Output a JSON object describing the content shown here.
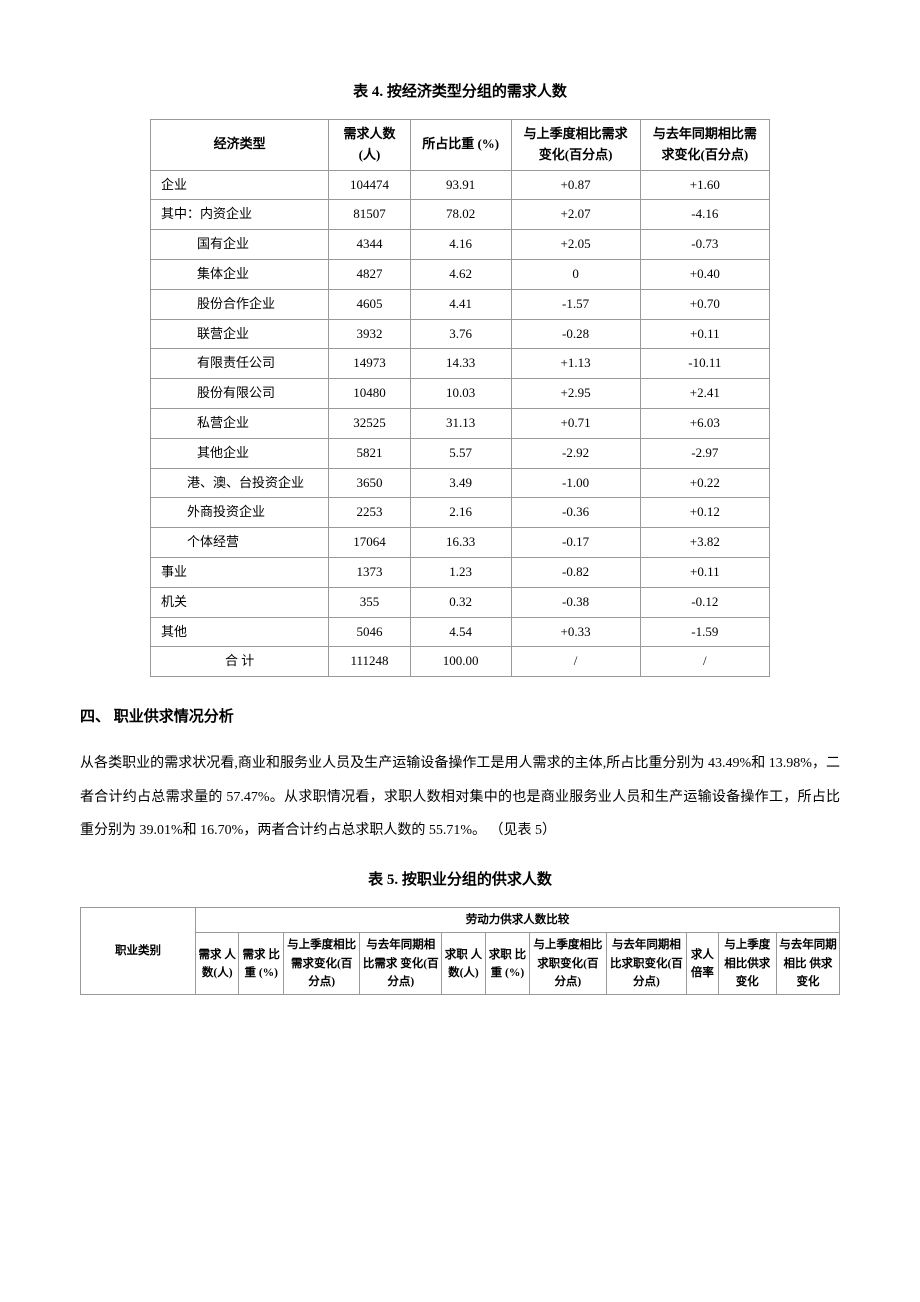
{
  "table4": {
    "title": "表 4. 按经济类型分组的需求人数",
    "headers": [
      "经济类型",
      "需求人数(人)",
      "所占比重 (%)",
      "与上季度相比需求变化(百分点)",
      "与去年同期相比需求变化(百分点)"
    ],
    "rows": [
      {
        "label": "企业",
        "indent": 0,
        "v": [
          "104474",
          "93.91",
          "+0.87",
          "+1.60"
        ]
      },
      {
        "label": "其中：内资企业",
        "indent": 0,
        "v": [
          "81507",
          "78.02",
          "+2.07",
          "-4.16"
        ]
      },
      {
        "label": "国有企业",
        "indent": 2,
        "v": [
          "4344",
          "4.16",
          "+2.05",
          "-0.73"
        ]
      },
      {
        "label": "集体企业",
        "indent": 2,
        "v": [
          "4827",
          "4.62",
          "0",
          "+0.40"
        ]
      },
      {
        "label": "股份合作企业",
        "indent": 2,
        "v": [
          "4605",
          "4.41",
          "-1.57",
          "+0.70"
        ]
      },
      {
        "label": "联营企业",
        "indent": 2,
        "v": [
          "3932",
          "3.76",
          "-0.28",
          "+0.11"
        ]
      },
      {
        "label": "有限责任公司",
        "indent": 2,
        "v": [
          "14973",
          "14.33",
          "+1.13",
          "-10.11"
        ]
      },
      {
        "label": "股份有限公司",
        "indent": 2,
        "v": [
          "10480",
          "10.03",
          "+2.95",
          "+2.41"
        ]
      },
      {
        "label": "私营企业",
        "indent": 2,
        "v": [
          "32525",
          "31.13",
          "+0.71",
          "+6.03"
        ]
      },
      {
        "label": "其他企业",
        "indent": 2,
        "v": [
          "5821",
          "5.57",
          "-2.92",
          "-2.97"
        ]
      },
      {
        "label": "港、澳、台投资企业",
        "indent": 3,
        "v": [
          "3650",
          "3.49",
          "-1.00",
          "+0.22"
        ]
      },
      {
        "label": "外商投资企业",
        "indent": 3,
        "v": [
          "2253",
          "2.16",
          "-0.36",
          "+0.12"
        ]
      },
      {
        "label": "个体经营",
        "indent": 3,
        "v": [
          "17064",
          "16.33",
          "-0.17",
          "+3.82"
        ]
      },
      {
        "label": "事业",
        "indent": 0,
        "v": [
          "1373",
          "1.23",
          "-0.82",
          "+0.11"
        ]
      },
      {
        "label": "机关",
        "indent": 0,
        "v": [
          "355",
          "0.32",
          "-0.38",
          "-0.12"
        ]
      },
      {
        "label": "其他",
        "indent": 0,
        "v": [
          "5046",
          "4.54",
          "+0.33",
          "-1.59"
        ]
      },
      {
        "label": "合  计",
        "indent": 0,
        "center": true,
        "v": [
          "111248",
          "100.00",
          "/",
          "/"
        ]
      }
    ]
  },
  "section4": {
    "heading": "四、 职业供求情况分析",
    "paragraph": "从各类职业的需求状况看,商业和服务业人员及生产运输设备操作工是用人需求的主体,所占比重分别为 43.49%和 13.98%，二者合计约占总需求量的 57.47%。从求职情况看，求职人数相对集中的也是商业服务业人员和生产运输设备操作工，所占比重分别为 39.01%和 16.70%，两者合计约占总求职人数的 55.71%。 （见表 5）"
  },
  "table5": {
    "title": "表 5. 按职业分组的供求人数",
    "groupHeader": "劳动力供求人数比较",
    "colCategory": "职业类别",
    "cols": [
      "需求 人数(人)",
      "需求 比重 (%)",
      "与上季度相比需求变化(百分点)",
      "与去年同期相比需求 变化(百分点)",
      "求职 人数(人)",
      "求职 比重 (%)",
      "与上季度相比求职变化(百分点)",
      "与去年同期相比求职变化(百分点)",
      "求人 倍率",
      "与上季度相比供求 变化",
      "与去年同期相比 供求变化"
    ]
  }
}
